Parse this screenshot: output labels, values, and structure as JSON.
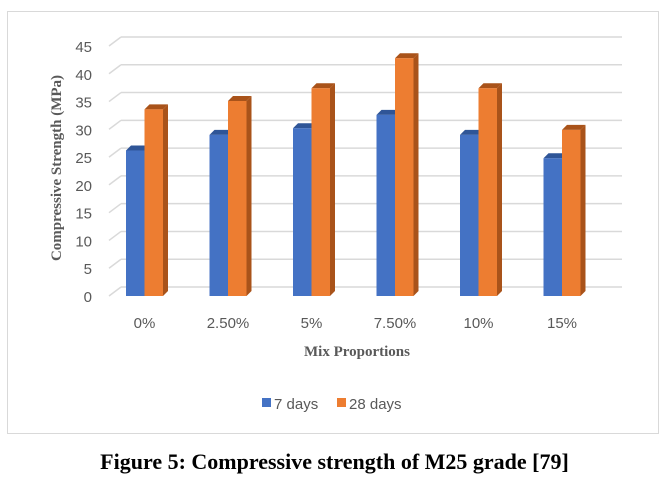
{
  "chart_data": {
    "type": "bar",
    "title": "",
    "xlabel": "Mix Proportions",
    "ylabel": "Compressive Strength (MPa)",
    "categories": [
      "0%",
      "2.50%",
      "5%",
      "7.50%",
      "10%",
      "15%"
    ],
    "series": [
      {
        "name": "7 days",
        "color": "#4472c4",
        "values": [
          26.2,
          29,
          30.2,
          32.6,
          29,
          24.8
        ]
      },
      {
        "name": "28 days",
        "color": "#ed7d31",
        "values": [
          33.6,
          35.1,
          37.4,
          42.8,
          37.4,
          29.9
        ]
      }
    ],
    "ylim": [
      0,
      45
    ],
    "yticks": [
      "0",
      "5",
      "10",
      "15",
      "20",
      "25",
      "30",
      "35",
      "40",
      "45"
    ],
    "grid": true,
    "legend": "bottom"
  },
  "caption": "Figure 5: Compressive strength of M25 grade [79]"
}
